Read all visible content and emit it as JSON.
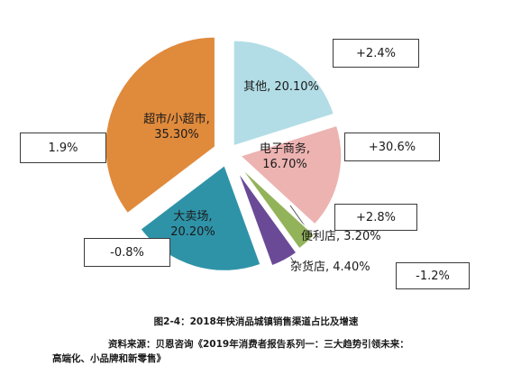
{
  "chart_data": {
    "type": "pie",
    "title": "",
    "slices": [
      {
        "name": "超市/小超市",
        "label": "超市/小超市,",
        "value_label": "35.30%",
        "value": 35.3,
        "growth": "1.9%",
        "color": "#e08a3c"
      },
      {
        "name": "其他",
        "label": "其他, 20.10%",
        "value": 20.1,
        "growth": "+2.4%",
        "color": "#b3dde6"
      },
      {
        "name": "电子商务",
        "label": "电子商务,",
        "value_label": "16.70%",
        "value": 16.7,
        "growth": "+30.6%",
        "color": "#ecb3b1"
      },
      {
        "name": "便利店",
        "label": "便利店, 3.20%",
        "value": 3.2,
        "growth": "+2.8%",
        "color": "#93b35a"
      },
      {
        "name": "杂货店",
        "label": "杂货店, 4.40%",
        "value": 4.4,
        "growth": "-1.2%",
        "color": "#6a4a96"
      },
      {
        "name": "大卖场",
        "label": "大卖场,",
        "value_label": "20.20%",
        "value": 20.2,
        "growth": "-0.8%",
        "color": "#2f93a8"
      }
    ]
  },
  "caption": "图2-4：2018年快消品城镇销售渠道占比及增速",
  "source_line1": "资料来源：贝恩咨询《2019年消费者报告系列一：三大趋势引领未来：",
  "source_line2": "高端化、小品牌和新零售》",
  "colors": {
    "border": "#3a3a3a",
    "text": "#1a1a1a"
  }
}
